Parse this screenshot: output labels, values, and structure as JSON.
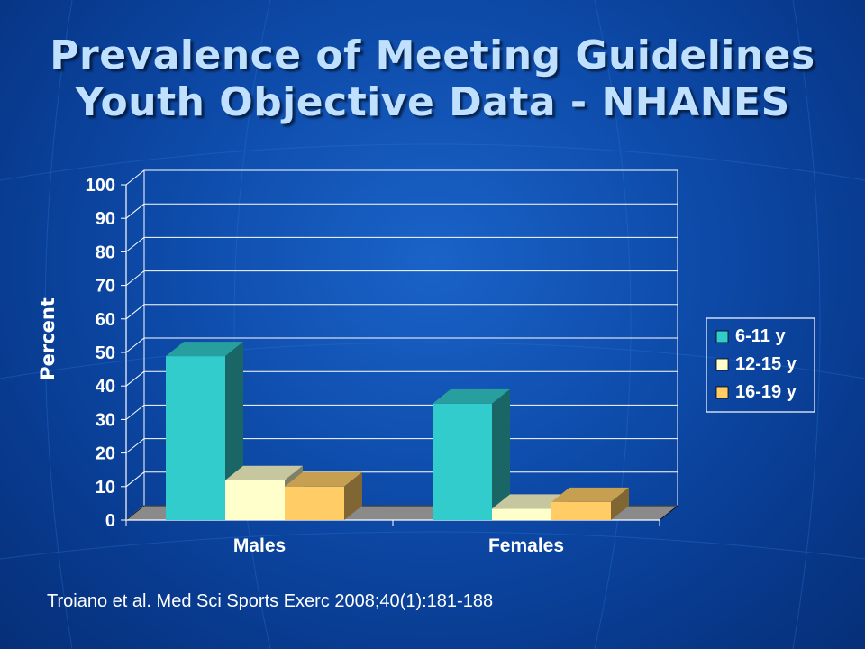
{
  "slide": {
    "title_line1": "Prevalence of Meeting Guidelines",
    "title_line2": "Youth Objective Data - NHANES",
    "citation": "Troiano et al. Med Sci Sports Exerc 2008;40(1):181-188"
  },
  "chart_data": {
    "type": "bar",
    "categories": [
      "Males",
      "Females"
    ],
    "series": [
      {
        "name": "6-11 y",
        "values": [
          48.9,
          34.7
        ],
        "color": "#33cccc"
      },
      {
        "name": "12-15 y",
        "values": [
          11.9,
          3.4
        ],
        "color": "#ffffcc"
      },
      {
        "name": "16-19 y",
        "values": [
          10.0,
          5.4
        ],
        "color": "#ffcc66"
      }
    ],
    "title": "",
    "xlabel": "",
    "ylabel": "Percent",
    "ylim": [
      0,
      100
    ],
    "yticks": [
      "0",
      "10",
      "20",
      "30",
      "40",
      "50",
      "60",
      "70",
      "80",
      "90",
      "100"
    ],
    "grid": true,
    "legend_position": "right",
    "style": "3d"
  }
}
